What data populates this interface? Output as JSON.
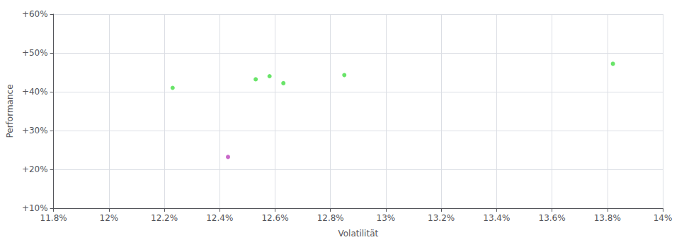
{
  "chart_data": {
    "type": "scatter",
    "xlabel": "Volatilität",
    "ylabel": "Performance",
    "xlim": [
      0.118,
      0.14
    ],
    "ylim": [
      0.1,
      0.6
    ],
    "xticks": [
      {
        "value": 0.118,
        "label": "11.8%"
      },
      {
        "value": 0.12,
        "label": "12%"
      },
      {
        "value": 0.122,
        "label": "12.2%"
      },
      {
        "value": 0.124,
        "label": "12.4%"
      },
      {
        "value": 0.126,
        "label": "12.6%"
      },
      {
        "value": 0.128,
        "label": "12.8%"
      },
      {
        "value": 0.13,
        "label": "13%"
      },
      {
        "value": 0.132,
        "label": "13.2%"
      },
      {
        "value": 0.134,
        "label": "13.4%"
      },
      {
        "value": 0.136,
        "label": "13.6%"
      },
      {
        "value": 0.138,
        "label": "13.8%"
      },
      {
        "value": 0.14,
        "label": "14%"
      }
    ],
    "yticks": [
      {
        "value": 0.1,
        "label": "+10%"
      },
      {
        "value": 0.2,
        "label": "+20%"
      },
      {
        "value": 0.3,
        "label": "+30%"
      },
      {
        "value": 0.4,
        "label": "+40%"
      },
      {
        "value": 0.5,
        "label": "+50%"
      },
      {
        "value": 0.6,
        "label": "+60%"
      }
    ],
    "grid": true,
    "marker": "circle",
    "series": [
      {
        "color": "#44dd44",
        "x": [
          0.1223,
          0.1253,
          0.1258,
          0.1263,
          0.1285,
          0.1382
        ],
        "values": [
          0.41,
          0.432,
          0.44,
          0.422,
          0.443,
          0.472
        ]
      },
      {
        "color": "#bb44bb",
        "x": [
          0.1243
        ],
        "values": [
          0.232
        ]
      }
    ]
  }
}
